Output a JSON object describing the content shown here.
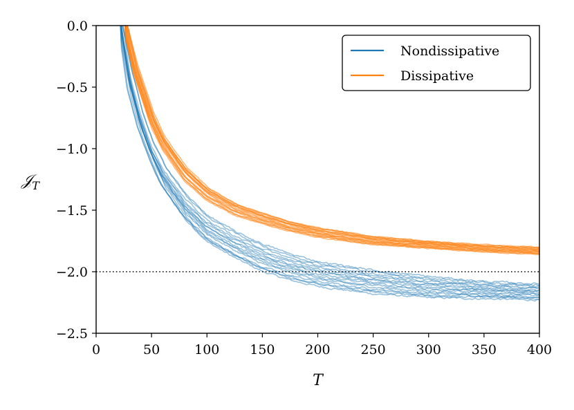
{
  "chart_data": {
    "type": "line",
    "title": "",
    "xlabel": "T",
    "ylabel": "𝒥",
    "ylabel_subscript": "T",
    "xlim": [
      0,
      400
    ],
    "ylim": [
      -2.5,
      0.0
    ],
    "xticks": [
      0,
      50,
      100,
      150,
      200,
      250,
      300,
      350,
      400
    ],
    "yticks": [
      0.0,
      -0.5,
      -1.0,
      -1.5,
      -2.0,
      -2.5
    ],
    "xtick_labels": [
      "0",
      "50",
      "100",
      "150",
      "200",
      "250",
      "300",
      "350",
      "400"
    ],
    "ytick_labels": [
      "0.0",
      "−0.5",
      "−1.0",
      "−1.5",
      "−2.0",
      "−2.5"
    ],
    "grid": false,
    "legend_position": "top-right",
    "reference_line": {
      "y": -2.0,
      "style": "dotted",
      "color": "#000000"
    },
    "series": [
      {
        "name": "Nondissipative",
        "color": "#1f77b4",
        "runs": 15,
        "x": [
          22,
          30,
          40,
          50,
          60,
          80,
          100,
          125,
          150,
          175,
          200,
          250,
          300,
          350,
          400
        ],
        "y_center": [
          0.0,
          -0.45,
          -0.78,
          -1.03,
          -1.22,
          -1.48,
          -1.65,
          -1.78,
          -1.88,
          -1.95,
          -2.0,
          -2.07,
          -2.11,
          -2.14,
          -2.16
        ],
        "y_low": [
          0.0,
          -0.55,
          -0.88,
          -1.12,
          -1.32,
          -1.58,
          -1.76,
          -1.89,
          -2.0,
          -2.07,
          -2.12,
          -2.18,
          -2.21,
          -2.22,
          -2.23
        ],
        "y_high": [
          0.0,
          -0.35,
          -0.7,
          -0.95,
          -1.13,
          -1.38,
          -1.55,
          -1.68,
          -1.78,
          -1.86,
          -1.92,
          -1.99,
          -2.04,
          -2.08,
          -2.1
        ]
      },
      {
        "name": "Dissipative",
        "color": "#ff7f0e",
        "runs": 15,
        "x": [
          26,
          35,
          50,
          60,
          80,
          100,
          125,
          150,
          175,
          200,
          250,
          300,
          350,
          400
        ],
        "y_center": [
          0.0,
          -0.36,
          -0.76,
          -0.95,
          -1.2,
          -1.37,
          -1.49,
          -1.57,
          -1.63,
          -1.68,
          -1.74,
          -1.78,
          -1.81,
          -1.83
        ],
        "y_low": [
          0.0,
          -0.4,
          -0.81,
          -1.0,
          -1.26,
          -1.42,
          -1.54,
          -1.61,
          -1.67,
          -1.72,
          -1.78,
          -1.81,
          -1.84,
          -1.86
        ],
        "y_high": [
          0.0,
          -0.3,
          -0.7,
          -0.89,
          -1.14,
          -1.31,
          -1.44,
          -1.52,
          -1.59,
          -1.64,
          -1.71,
          -1.75,
          -1.78,
          -1.8
        ]
      }
    ]
  }
}
